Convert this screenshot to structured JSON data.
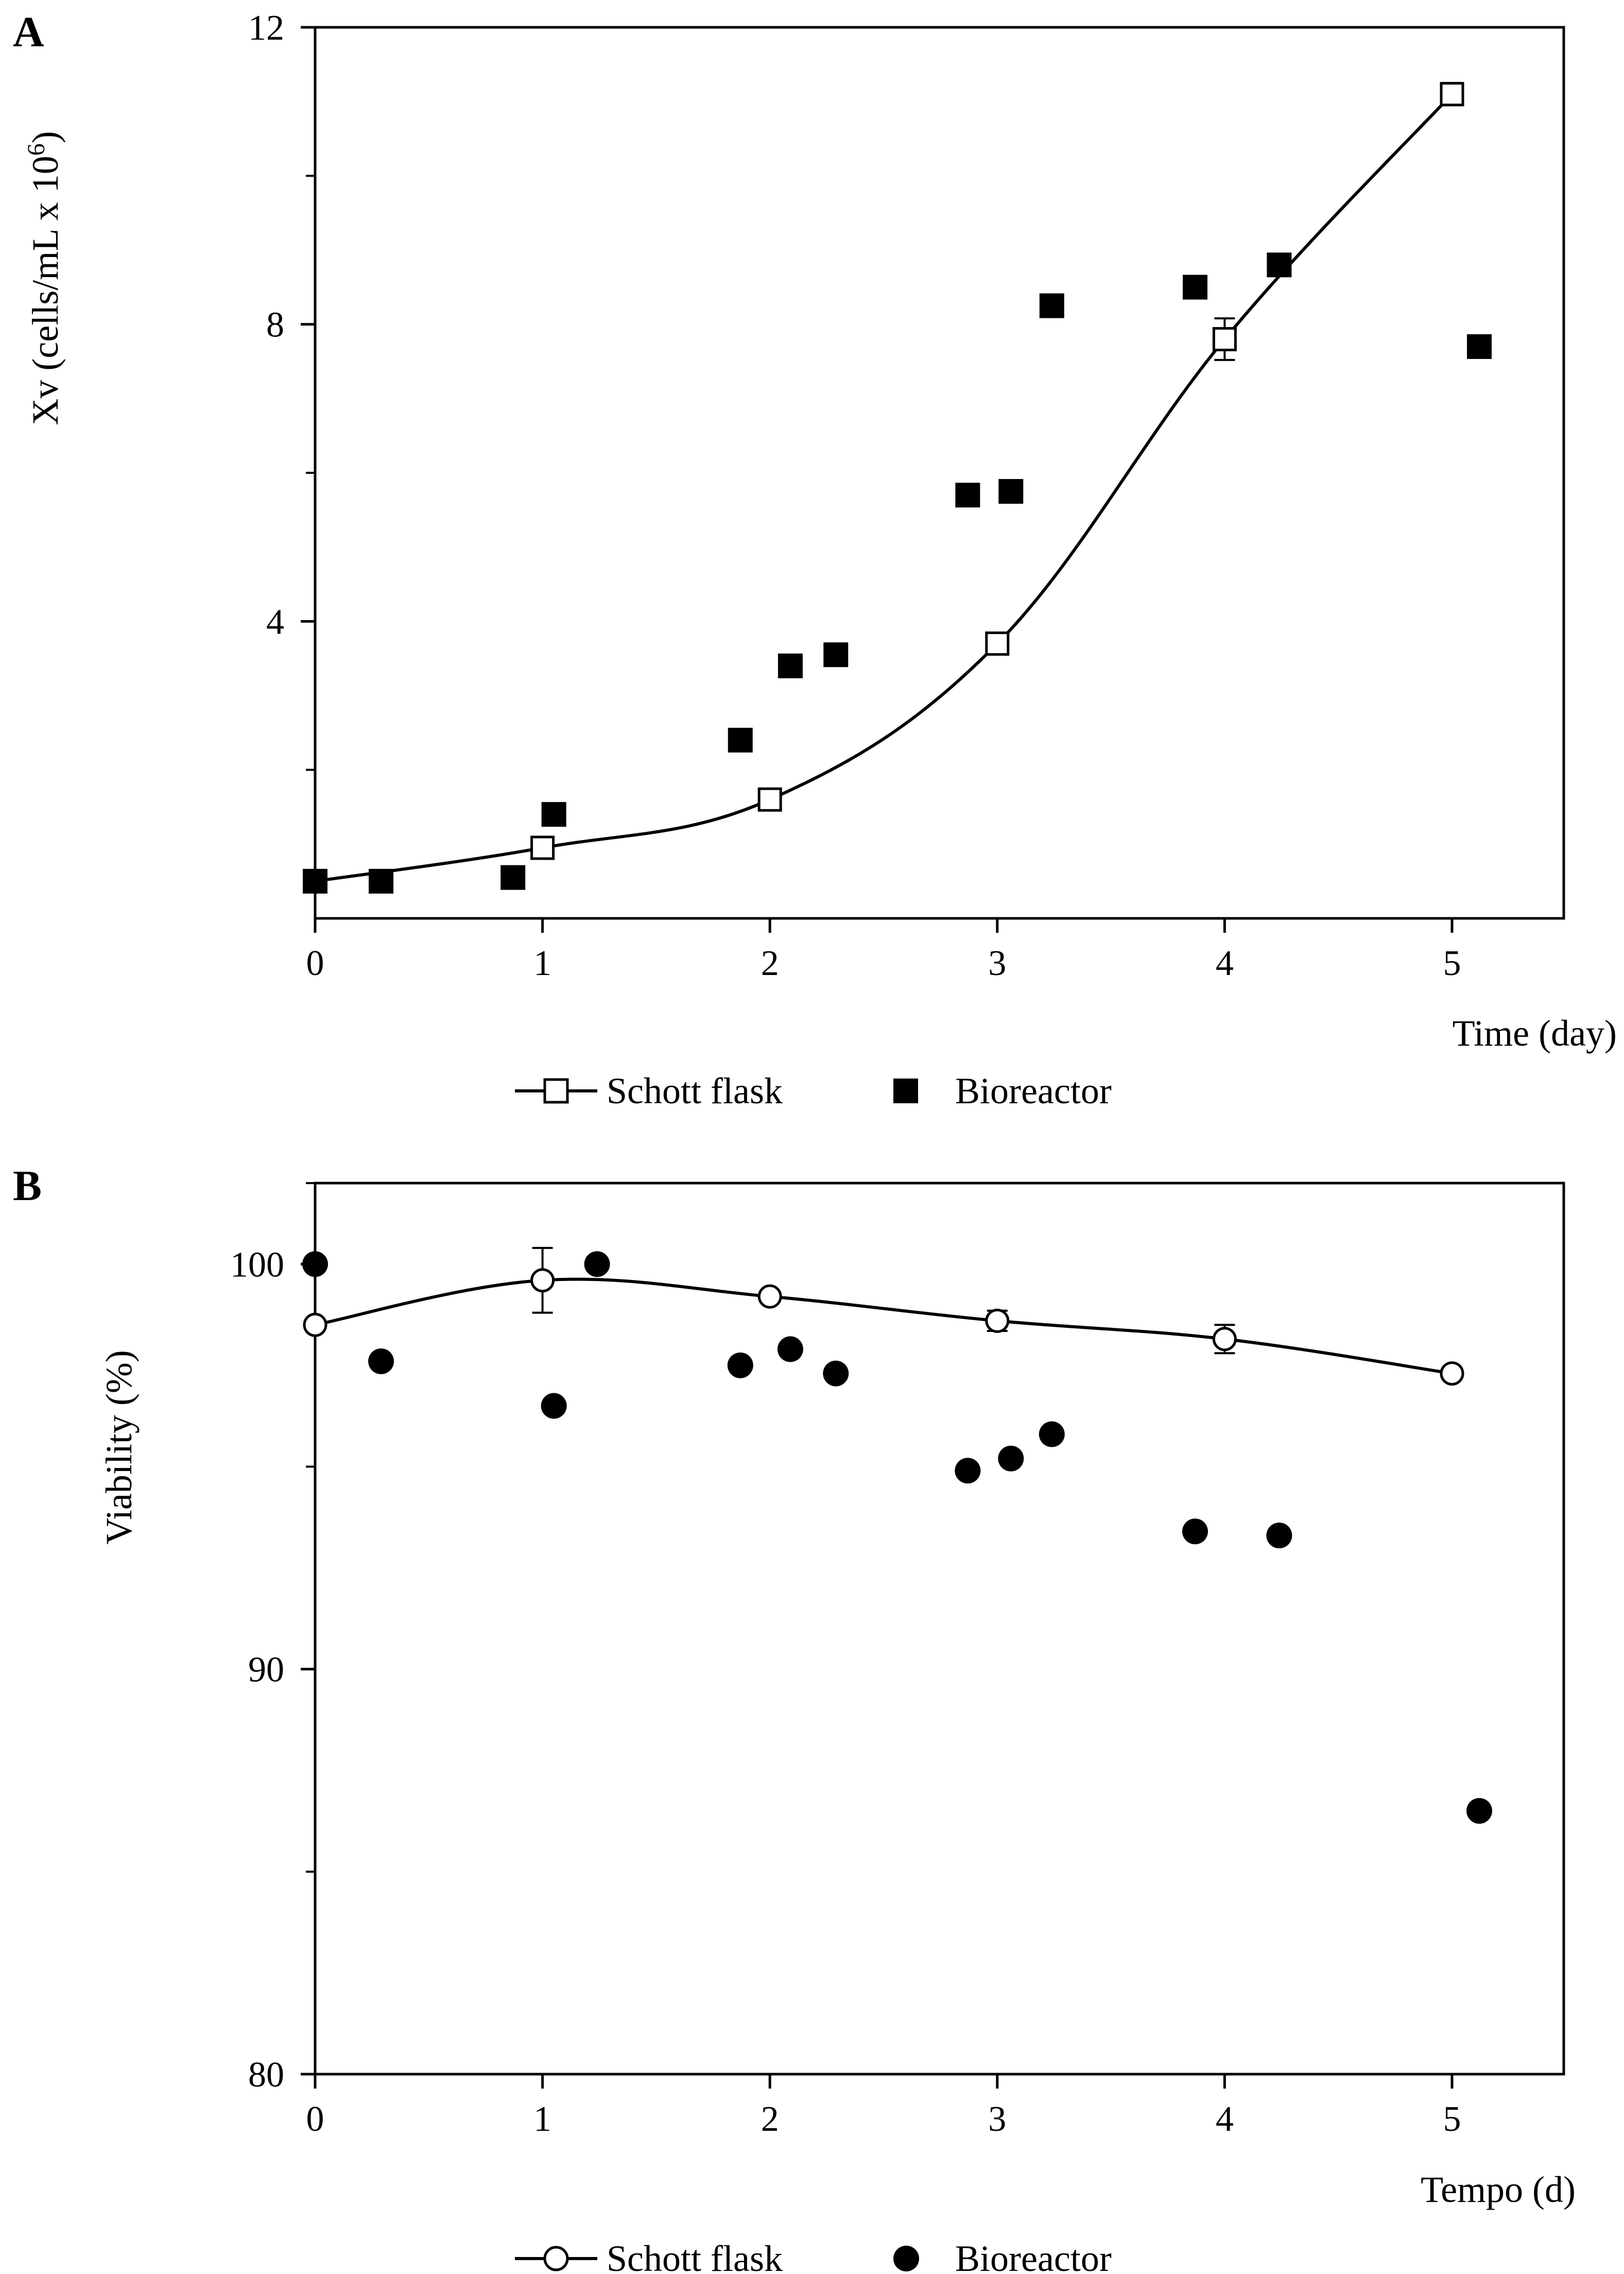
{
  "chart_data": [
    {
      "panel": "A",
      "type": "line+scatter",
      "xlabel": "Time (day)",
      "ylabel": "Xv (cells/mL x 10",
      "ylabel_sup": "6",
      "ylabel_close": ")",
      "xlim": [
        0,
        5.5
      ],
      "ylim": [
        0,
        12
      ],
      "xticks": [
        0,
        1,
        2,
        3,
        4,
        5
      ],
      "yticks": [
        4,
        8,
        12
      ],
      "xtick_labels": [
        "0",
        "1",
        "2",
        "3",
        "4",
        "5"
      ],
      "ytick_labels": [
        "4",
        "8",
        "12"
      ],
      "legend": [
        "Schott flask",
        "Bioreactor"
      ],
      "series": [
        {
          "name": "Schott flask",
          "marker": "open-square",
          "line": true,
          "x": [
            0,
            1,
            2,
            3,
            4,
            5
          ],
          "y": [
            0.5,
            0.95,
            1.6,
            3.7,
            7.8,
            11.1
          ],
          "err": [
            0,
            0.1,
            0.1,
            0.1,
            0.28,
            0.15
          ]
        },
        {
          "name": "Bioreactor",
          "marker": "filled-square",
          "line": false,
          "x": [
            0,
            0.29,
            0.87,
            1.05,
            1.87,
            2.09,
            2.29,
            2.87,
            3.06,
            3.24,
            3.87,
            4.24,
            5.12
          ],
          "y": [
            0.5,
            0.5,
            0.55,
            1.4,
            2.4,
            3.4,
            3.55,
            5.7,
            5.75,
            8.25,
            8.5,
            8.8,
            7.7
          ]
        }
      ]
    },
    {
      "panel": "B",
      "type": "line+scatter",
      "xlabel": "Tempo (d)",
      "ylabel": "Viability (%)",
      "xlim": [
        0,
        5.5
      ],
      "ylim": [
        80,
        102
      ],
      "xticks": [
        0,
        1,
        2,
        3,
        4,
        5
      ],
      "yticks": [
        80,
        90,
        100
      ],
      "xtick_labels": [
        "0",
        "1",
        "2",
        "3",
        "4",
        "5"
      ],
      "ytick_labels": [
        "80",
        "90",
        "100"
      ],
      "legend": [
        "Schott flask",
        "Bioreactor"
      ],
      "series": [
        {
          "name": "Schott flask",
          "marker": "open-circle",
          "line": true,
          "x": [
            0,
            1,
            2,
            3,
            4,
            5
          ],
          "y": [
            98.5,
            99.6,
            99.2,
            98.6,
            98.15,
            97.3
          ],
          "err": [
            0,
            0.8,
            0,
            0.25,
            0.35,
            0
          ]
        },
        {
          "name": "Bioreactor",
          "marker": "filled-circle",
          "line": false,
          "x": [
            0,
            0.29,
            1.05,
            1.24,
            1.87,
            2.09,
            2.29,
            2.87,
            3.06,
            3.24,
            3.87,
            4.24,
            5.12
          ],
          "y": [
            100,
            97.6,
            96.5,
            100,
            97.5,
            97.9,
            97.3,
            94.9,
            95.2,
            95.8,
            93.4,
            93.3,
            86.5
          ]
        }
      ]
    }
  ]
}
